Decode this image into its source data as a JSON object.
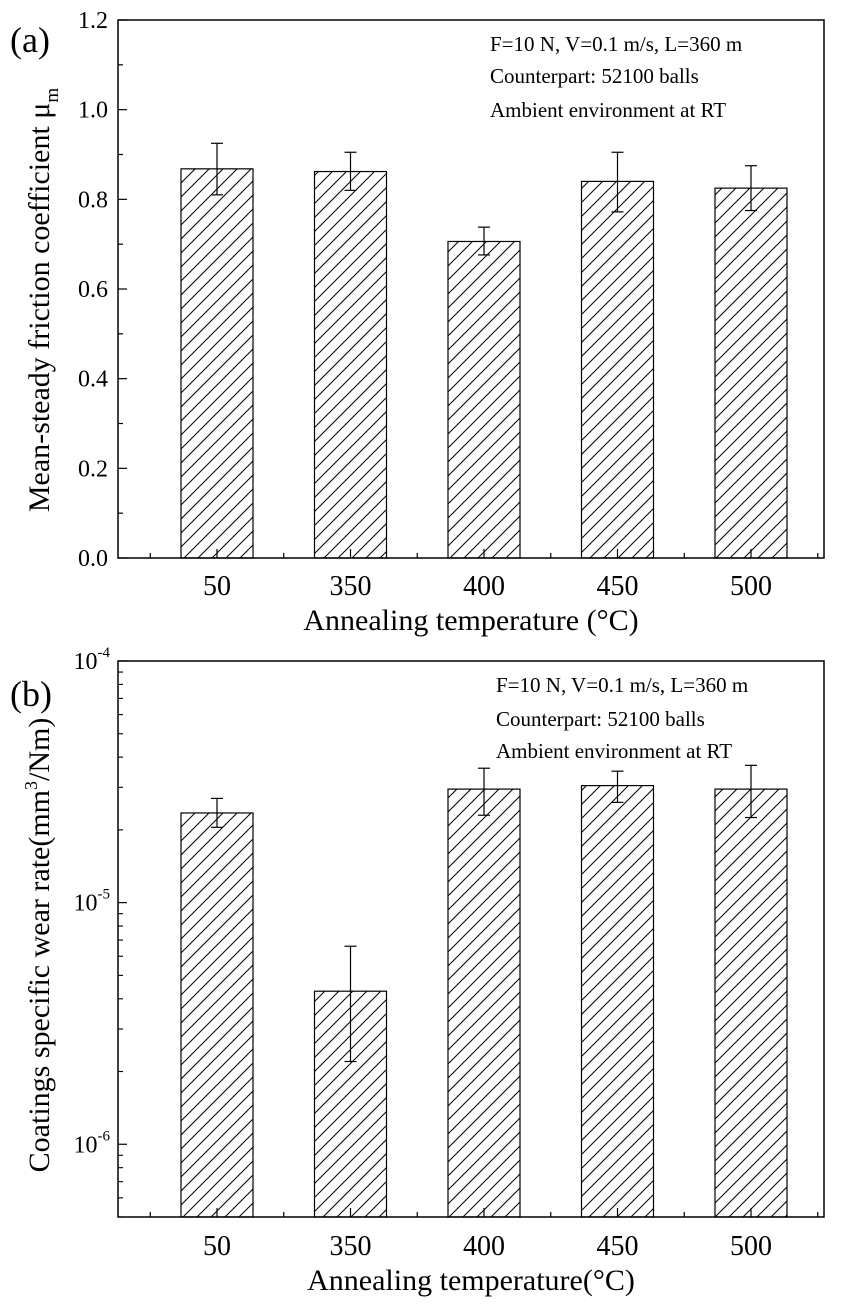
{
  "chart_data": [
    {
      "type": "bar",
      "panel_label": "(a)",
      "categories": [
        "50",
        "350",
        "400",
        "450",
        "500"
      ],
      "values": [
        0.868,
        0.862,
        0.706,
        0.84,
        0.825
      ],
      "errors_low": [
        0.81,
        0.82,
        0.676,
        0.772,
        0.775
      ],
      "errors_high": [
        0.925,
        0.905,
        0.738,
        0.905,
        0.875
      ],
      "xlabel": "Annealing temperature (°C)",
      "ylabel": "Mean-steady friction coefficient μ",
      "ylabel_subscript": "m",
      "ylim": [
        0,
        1.2
      ],
      "yscale": "linear",
      "yticks": [
        0,
        0.2,
        0.4,
        0.6,
        0.8,
        1.0,
        1.2
      ],
      "ytick_labels": [
        "0.0",
        "0.2",
        "0.4",
        "0.6",
        "0.8",
        "1.0",
        "1.2"
      ],
      "annotations": [
        "F=10 N, V=0.1 m/s, L=360 m",
        "Counterpart: 52100 balls",
        "Ambient environment at RT"
      ],
      "fill": "diagonal-hatch",
      "grid": false
    },
    {
      "type": "bar",
      "panel_label": "(b)",
      "categories": [
        "50",
        "350",
        "400",
        "450",
        "500"
      ],
      "values": [
        2.35e-05,
        4.3e-06,
        2.95e-05,
        3.05e-05,
        2.95e-05
      ],
      "errors_low": [
        2.05e-05,
        2.2e-06,
        2.3e-05,
        2.6e-05,
        2.25e-05
      ],
      "errors_high": [
        2.7e-05,
        6.6e-06,
        3.6e-05,
        3.5e-05,
        3.7e-05
      ],
      "xlabel_parts": [
        "Annealing temperature",
        "(°C)"
      ],
      "ylabel_parts": [
        "Coatings specific wear rate",
        "(mm",
        "3",
        "/Nm)"
      ],
      "ylim": [
        5e-07,
        0.0001
      ],
      "yscale": "log",
      "yticks": [
        1e-06,
        1e-05,
        0.0001
      ],
      "ytick_bases": [
        "10",
        "10",
        "10"
      ],
      "ytick_exponents": [
        "-6",
        "-5",
        "-4"
      ],
      "annotations": [
        "F=10 N, V=0.1 m/s, L=360 m",
        "Counterpart: 52100 balls",
        "Ambient environment at RT"
      ],
      "fill": "diagonal-hatch",
      "grid": false
    }
  ]
}
